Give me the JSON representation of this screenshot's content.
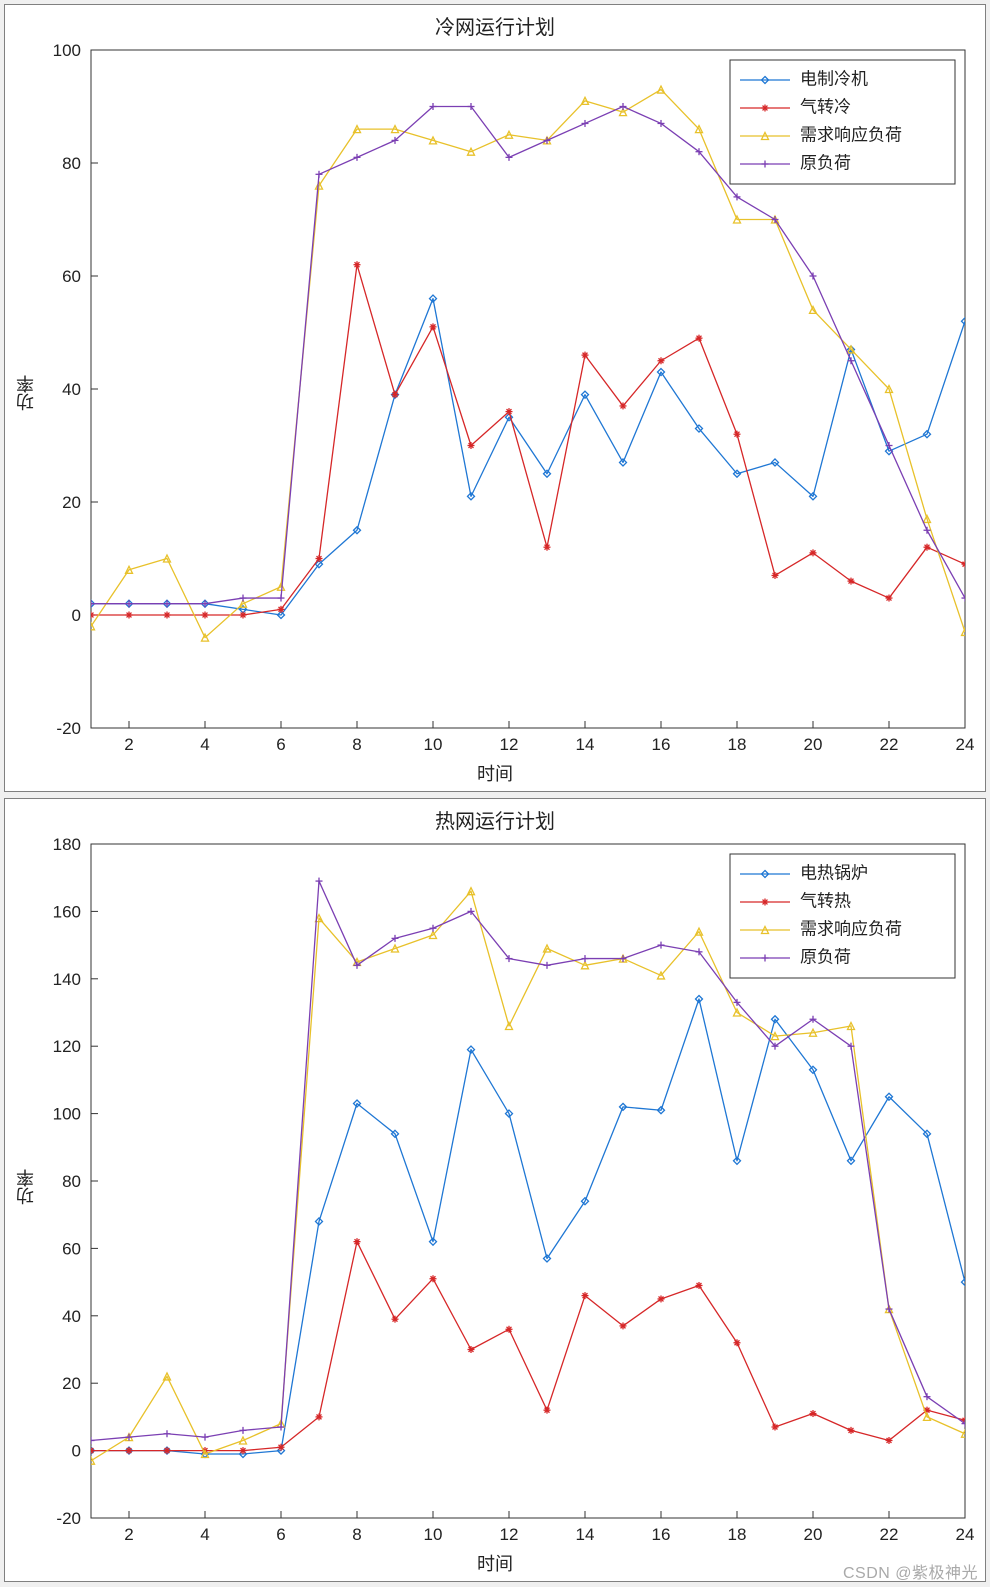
{
  "watermark": "CSDN @紫极神光",
  "charts": [
    {
      "id": "cold",
      "type": "line",
      "title": "冷网运行计划",
      "xlabel": "时间",
      "ylabel": "功率",
      "xlim": [
        1,
        24
      ],
      "ylim": [
        -20,
        100
      ],
      "xticks": [
        2,
        4,
        6,
        8,
        10,
        12,
        14,
        16,
        18,
        20,
        22,
        24
      ],
      "yticks": [
        -20,
        0,
        20,
        40,
        60,
        80,
        100
      ],
      "background_color": "#ffffff",
      "box_color": "#333333",
      "tick_fontsize": 17,
      "title_fontsize": 20,
      "label_fontsize": 18,
      "line_width": 1.3,
      "marker_size": 7,
      "legend": {
        "position": "top-right",
        "bg": "#ffffff",
        "border": "#333333",
        "items": [
          "电制冷机",
          "气转冷",
          "需求响应负荷",
          "原负荷"
        ]
      },
      "x": [
        1,
        2,
        3,
        4,
        5,
        6,
        7,
        8,
        9,
        10,
        11,
        12,
        13,
        14,
        15,
        16,
        17,
        18,
        19,
        20,
        21,
        22,
        23,
        24
      ],
      "series": [
        {
          "name": "电制冷机",
          "color": "#1f77d4",
          "marker": "diamond",
          "y": [
            2,
            2,
            2,
            2,
            1,
            0,
            9,
            15,
            39,
            56,
            21,
            35,
            25,
            39,
            27,
            43,
            33,
            25,
            27,
            21,
            47,
            29,
            32,
            52
          ]
        },
        {
          "name": "气转冷",
          "color": "#d62728",
          "marker": "asterisk",
          "y": [
            0,
            0,
            0,
            0,
            0,
            1,
            10,
            62,
            39,
            51,
            30,
            36,
            12,
            46,
            37,
            45,
            49,
            32,
            7,
            11,
            6,
            3,
            12,
            9
          ]
        },
        {
          "name": "需求响应负荷",
          "color": "#e8c12a",
          "marker": "triangle",
          "y": [
            -2,
            8,
            10,
            -4,
            2,
            5,
            76,
            86,
            86,
            84,
            82,
            85,
            84,
            91,
            89,
            93,
            86,
            70,
            70,
            54,
            47,
            40,
            17,
            -3
          ]
        },
        {
          "name": "原负荷",
          "color": "#7b3fb3",
          "marker": "plus",
          "y": [
            2,
            2,
            2,
            2,
            3,
            3,
            78,
            81,
            84,
            90,
            90,
            81,
            84,
            87,
            90,
            87,
            82,
            74,
            70,
            60,
            45,
            30,
            15,
            3
          ]
        }
      ]
    },
    {
      "id": "heat",
      "type": "line",
      "title": "热网运行计划",
      "xlabel": "时间",
      "ylabel": "功率",
      "xlim": [
        1,
        24
      ],
      "ylim": [
        -20,
        180
      ],
      "xticks": [
        2,
        4,
        6,
        8,
        10,
        12,
        14,
        16,
        18,
        20,
        22,
        24
      ],
      "yticks": [
        -20,
        0,
        20,
        40,
        60,
        80,
        100,
        120,
        140,
        160,
        180
      ],
      "background_color": "#ffffff",
      "box_color": "#333333",
      "tick_fontsize": 17,
      "title_fontsize": 20,
      "label_fontsize": 18,
      "line_width": 1.3,
      "marker_size": 7,
      "legend": {
        "position": "top-right",
        "bg": "#ffffff",
        "border": "#333333",
        "items": [
          "电热锅炉",
          "气转热",
          "需求响应负荷",
          "原负荷"
        ]
      },
      "x": [
        1,
        2,
        3,
        4,
        5,
        6,
        7,
        8,
        9,
        10,
        11,
        12,
        13,
        14,
        15,
        16,
        17,
        18,
        19,
        20,
        21,
        22,
        23,
        24
      ],
      "series": [
        {
          "name": "电热锅炉",
          "color": "#1f77d4",
          "marker": "diamond",
          "y": [
            0,
            0,
            0,
            -1,
            -1,
            0,
            68,
            103,
            94,
            62,
            119,
            100,
            57,
            74,
            102,
            101,
            134,
            86,
            128,
            113,
            86,
            105,
            94,
            50
          ]
        },
        {
          "name": "气转热",
          "color": "#d62728",
          "marker": "asterisk",
          "y": [
            0,
            0,
            0,
            0,
            0,
            1,
            10,
            62,
            39,
            51,
            30,
            36,
            12,
            46,
            37,
            45,
            49,
            32,
            7,
            11,
            6,
            3,
            12,
            9
          ]
        },
        {
          "name": "需求响应负荷",
          "color": "#e8c12a",
          "marker": "triangle",
          "y": [
            -3,
            4,
            22,
            -1,
            3,
            8,
            158,
            145,
            149,
            153,
            166,
            126,
            149,
            144,
            146,
            141,
            154,
            130,
            123,
            124,
            126,
            42,
            10,
            5
          ]
        },
        {
          "name": "原负荷",
          "color": "#7b3fb3",
          "marker": "plus",
          "y": [
            3,
            4,
            5,
            4,
            6,
            7,
            169,
            144,
            152,
            155,
            160,
            146,
            144,
            146,
            146,
            150,
            148,
            133,
            120,
            128,
            120,
            42,
            16,
            8
          ]
        }
      ]
    }
  ]
}
